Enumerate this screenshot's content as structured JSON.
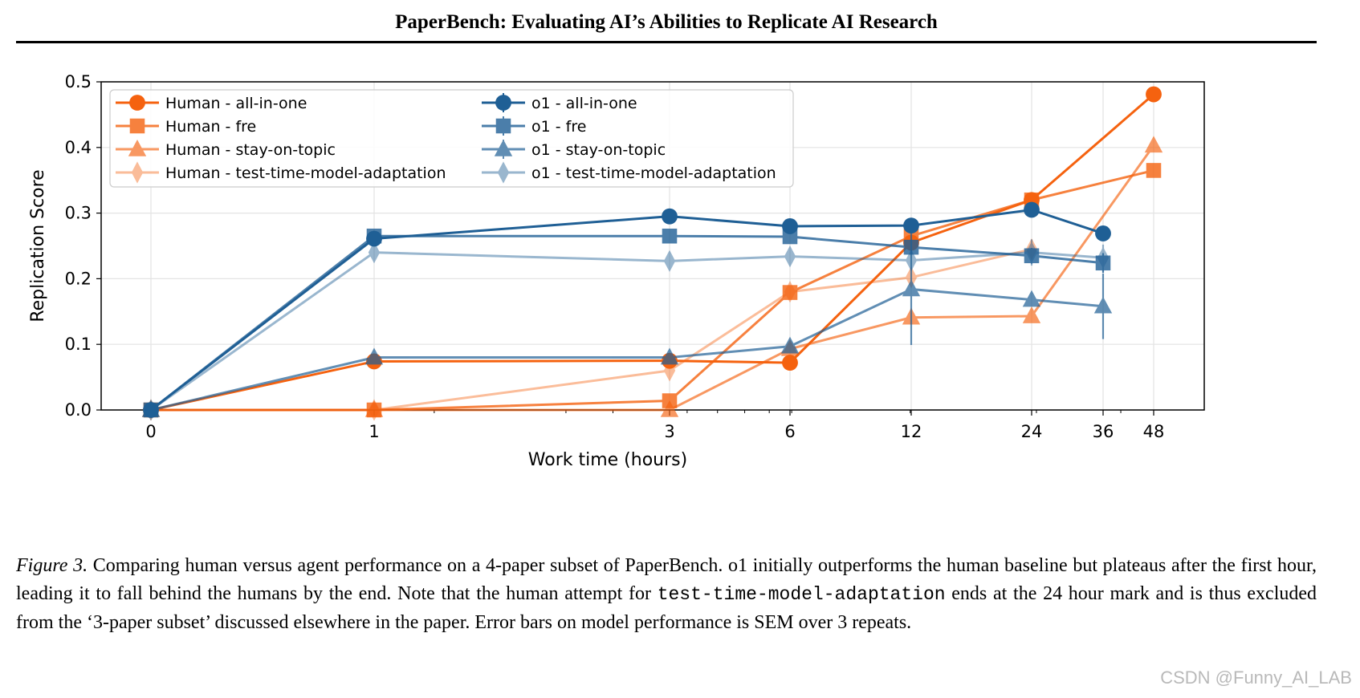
{
  "header": {
    "title": "PaperBench: Evaluating AI’s Abilities to Replicate AI Research"
  },
  "colors": {
    "human": "#f5620f",
    "o1": "#1f5f95"
  },
  "chart_data": {
    "type": "line",
    "xlabel": "Work time (hours)",
    "ylabel": "Replication Score",
    "ylim": [
      0.0,
      0.5
    ],
    "y_ticks": [
      "0.0",
      "0.1",
      "0.2",
      "0.3",
      "0.4",
      "0.5"
    ],
    "x_ticks": [
      "0",
      "1",
      "3",
      "6",
      "12",
      "24",
      "36",
      "48"
    ],
    "grid": true,
    "legend_position": "top-left",
    "series": [
      {
        "name": "Human - all-in-one",
        "group": "human",
        "marker": "circle",
        "alpha": 1.0,
        "x": [
          0,
          1,
          3,
          6,
          12,
          24,
          48
        ],
        "values": [
          0.0,
          0.074,
          0.075,
          0.072,
          0.255,
          0.32,
          0.481
        ]
      },
      {
        "name": "Human - fre",
        "group": "human",
        "marker": "square",
        "alpha": 0.8,
        "x": [
          0,
          1,
          3,
          6,
          12,
          24,
          48
        ],
        "values": [
          0.0,
          0.0,
          0.014,
          0.179,
          0.265,
          0.32,
          0.365
        ]
      },
      {
        "name": "Human - stay-on-topic",
        "group": "human",
        "marker": "triangle",
        "alpha": 0.65,
        "x": [
          0,
          1,
          3,
          6,
          12,
          24,
          48
        ],
        "values": [
          0.0,
          0.0,
          0.0,
          0.093,
          0.141,
          0.143,
          0.403
        ]
      },
      {
        "name": "Human - test-time-model-adaptation",
        "group": "human",
        "marker": "diamond",
        "alpha": 0.42,
        "x": [
          0,
          1,
          3,
          6,
          12,
          24
        ],
        "values": [
          0.0,
          0.0,
          0.06,
          0.18,
          0.202,
          0.245
        ]
      },
      {
        "name": "o1  - all-in-one",
        "group": "o1",
        "marker": "circle",
        "alpha": 1.0,
        "x": [
          0,
          1,
          3,
          6,
          12,
          24,
          36
        ],
        "values": [
          0.0,
          0.261,
          0.295,
          0.28,
          0.281,
          0.305,
          0.269
        ],
        "err": [
          0,
          0.003,
          0.003,
          0.003,
          0.003,
          0.005,
          0.004
        ]
      },
      {
        "name": "o1  - fre",
        "group": "o1",
        "marker": "square",
        "alpha": 0.8,
        "x": [
          0,
          1,
          3,
          6,
          12,
          24,
          36
        ],
        "values": [
          0.0,
          0.265,
          0.265,
          0.264,
          0.248,
          0.235,
          0.224
        ],
        "err": [
          0,
          0.004,
          0.004,
          0.004,
          0.008,
          0.012,
          0.015
        ]
      },
      {
        "name": "o1  - stay-on-topic",
        "group": "o1",
        "marker": "triangle",
        "alpha": 0.7,
        "x": [
          0,
          1,
          3,
          6,
          12,
          24,
          36
        ],
        "values": [
          0.0,
          0.08,
          0.08,
          0.097,
          0.184,
          0.168,
          0.158
        ],
        "err": [
          0,
          0.004,
          0.004,
          0.004,
          0.085,
          0.0,
          0.05
        ]
      },
      {
        "name": "o1  - test-time-model-adaptation",
        "group": "o1",
        "marker": "diamond",
        "alpha": 0.45,
        "x": [
          0,
          1,
          3,
          6,
          12,
          24,
          36
        ],
        "values": [
          0.0,
          0.24,
          0.227,
          0.234,
          0.228,
          0.24,
          0.232
        ],
        "err": [
          0,
          0.012,
          0.012,
          0.012,
          0.012,
          0.02,
          0.02
        ]
      }
    ]
  },
  "caption": {
    "label": "Figure 3.",
    "part1": " Comparing human versus agent performance on a 4-paper subset of PaperBench.  o1 initially outperforms the human baseline but plateaus after the first hour, leading it to fall behind the humans by the end.  Note that the human attempt for ",
    "code": "test-time-model-adaptation",
    "part2": " ends at the 24 hour mark and is thus excluded from the ‘3-paper subset’ discussed elsewhere in the paper. Error bars on model performance is SEM over 3 repeats."
  },
  "watermark": "CSDN @Funny_AI_LAB"
}
